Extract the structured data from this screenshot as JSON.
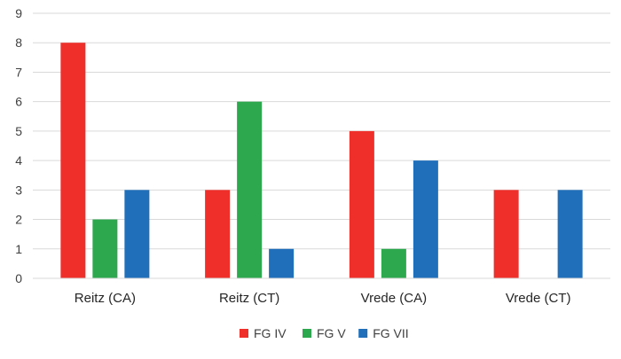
{
  "chart_data": {
    "type": "bar",
    "title": "",
    "xlabel": "",
    "ylabel": "",
    "categories": [
      "Reitz (CA)",
      "Reitz (CT)",
      "Vrede (CA)",
      "Vrede (CT)"
    ],
    "series": [
      {
        "name": "FG IV",
        "color": "#ef2f2a",
        "values": [
          8,
          3,
          5,
          3
        ]
      },
      {
        "name": "FG V",
        "color": "#2ea84f",
        "values": [
          2,
          6,
          1,
          0
        ]
      },
      {
        "name": "FG VII",
        "color": "#1f6fba",
        "values": [
          3,
          1,
          4,
          3
        ]
      }
    ],
    "ylim": [
      0,
      9
    ],
    "yticks": [
      "0",
      "1",
      "2",
      "3",
      "4",
      "5",
      "6",
      "7",
      "8",
      "9"
    ],
    "grid": true,
    "gridColor": "#d9d9d9",
    "legend_position": "bottom-center"
  }
}
